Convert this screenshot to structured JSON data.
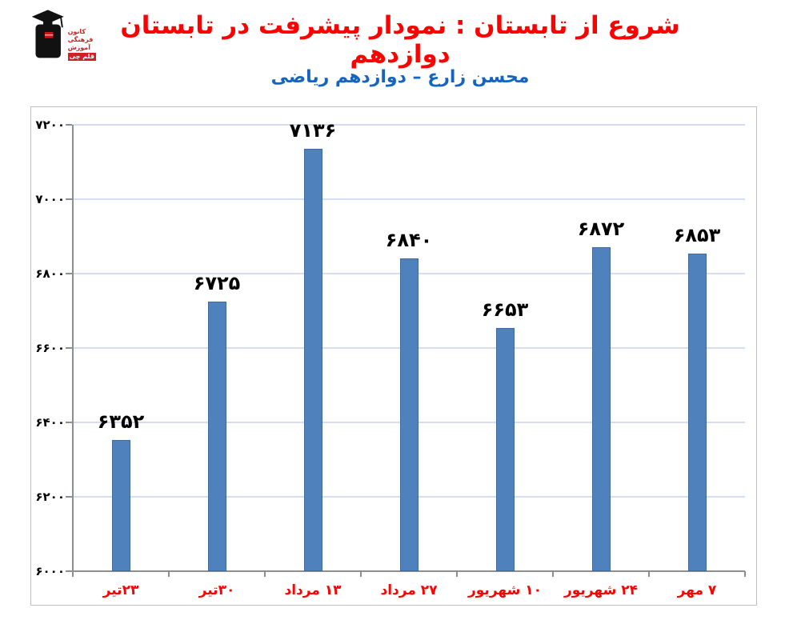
{
  "header": {
    "title": "شروع از تابستان : نمودار پیشرفت در تابستان دوازدهم",
    "subtitle": "محسن زارع – دوازدهم ریاضی",
    "title_color": "#FF0000",
    "subtitle_color": "#1565C0"
  },
  "logo": {
    "lines": [
      "کانون",
      "فرهنگی",
      "آموزش"
    ],
    "badge": "قلم چی"
  },
  "chart_data": {
    "type": "bar",
    "title": "",
    "xlabel": "",
    "ylabel": "",
    "categories": [
      "۲۳تیر",
      "۳۰تیر",
      "۱۳ مرداد",
      "۲۷ مرداد",
      "۱۰ شهریور",
      "۲۴ شهریور",
      "۷ مهر"
    ],
    "values": [
      6352,
      6725,
      7136,
      6840,
      6653,
      6872,
      6853
    ],
    "value_labels": [
      "۶۳۵۲",
      "۶۷۲۵",
      "۷۱۳۶",
      "۶۸۴۰",
      "۶۶۵۳",
      "۶۸۷۲",
      "۶۸۵۳"
    ],
    "y_ticks": {
      "values": [
        6000,
        6200,
        6400,
        6600,
        6800,
        7000,
        7200
      ],
      "labels": [
        "۶۰۰۰",
        "۶۲۰۰",
        "۶۴۰۰",
        "۶۶۰۰",
        "۶۸۰۰",
        "۷۰۰۰",
        "۷۲۰۰"
      ]
    },
    "ylim": [
      6000,
      7200
    ],
    "grid": true,
    "legend": "none",
    "colors": {
      "bar": "#4F81BD",
      "bar_border": "#41699C",
      "gridline": "#D3DEF1",
      "axis": "#8E8E8E",
      "category_label": "#FF0000",
      "value_label": "#000000",
      "tick_label": "#000000",
      "chart_border": "#BFBFBF"
    }
  }
}
